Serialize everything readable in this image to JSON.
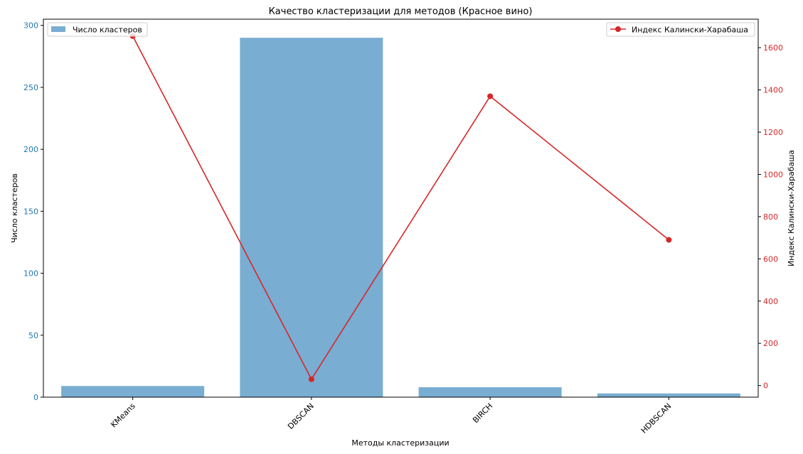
{
  "chart_data": {
    "type": "bar+line",
    "title": "Качество кластеризации для методов (Красное вино)",
    "xlabel": "Методы кластеризации",
    "categories": [
      "KMeans",
      "DBSCAN",
      "BIRCH",
      "HDBSCAN"
    ],
    "y_left": {
      "label": "Число кластеров",
      "color": "#1f77b4",
      "ylim": [
        0,
        305
      ],
      "ticks": [
        0,
        50,
        100,
        150,
        200,
        250,
        300
      ]
    },
    "y_right": {
      "label": "Индекс Калински-Харабаша",
      "color": "#d62728",
      "ylim": [
        -55,
        1735
      ],
      "ticks": [
        0,
        200,
        400,
        600,
        800,
        1000,
        1200,
        1400,
        1600
      ]
    },
    "series": [
      {
        "name": "Число кластеров",
        "kind": "bar",
        "axis": "left",
        "color": "#1f77b4",
        "values": [
          9,
          290,
          8,
          3
        ]
      },
      {
        "name": "Индекс Калински-Харабаша",
        "kind": "line",
        "axis": "right",
        "color": "#d62728",
        "marker": "circle",
        "values": [
          1655,
          30,
          1370,
          690
        ]
      }
    ],
    "legend_bar_position": "top-left",
    "legend_line_position": "top-right",
    "grid": false
  }
}
